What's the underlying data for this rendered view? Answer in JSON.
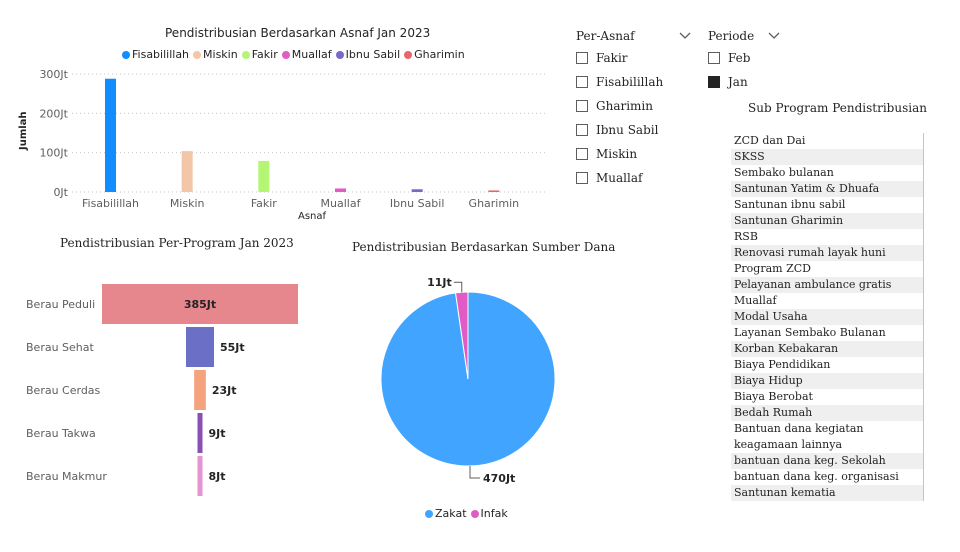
{
  "asnaf_chart": {
    "title": "Pendistribusian Berdasarkan Asnaf Jan 2023",
    "legend": [
      {
        "label": "Fisabilillah",
        "color": "#118dff"
      },
      {
        "label": "Miskin",
        "color": "#f4c6a8"
      },
      {
        "label": "Fakir",
        "color": "#b4f574"
      },
      {
        "label": "Muallaf",
        "color": "#e15cc2"
      },
      {
        "label": "Ibnu Sabil",
        "color": "#7b68c9"
      },
      {
        "label": "Gharimin",
        "color": "#e8666a"
      }
    ],
    "ylabel": "Jumlah",
    "xlabel": "Asnaf",
    "yticks": [
      "300Jt",
      "200Jt",
      "100Jt",
      "0Jt"
    ]
  },
  "program_chart": {
    "title": "Pendistribusian Per-Program Jan 2023"
  },
  "source_chart": {
    "title": "Pendistribusian Berdasarkan Sumber Dana",
    "legend": [
      {
        "label": "Zakat",
        "color": "#41a4ff"
      },
      {
        "label": "Infak",
        "color": "#e15cc2"
      }
    ]
  },
  "chart_data": [
    {
      "type": "bar",
      "title": "Pendistribusian Berdasarkan Asnaf Jan 2023",
      "xlabel": "Asnaf",
      "ylabel": "Jumlah",
      "categories": [
        "Fisabilillah",
        "Miskin",
        "Fakir",
        "Muallaf",
        "Ibnu Sabil",
        "Gharimin"
      ],
      "values": [
        288,
        104,
        79,
        9,
        7,
        4
      ],
      "ylim": [
        0,
        300
      ],
      "unit": "Jt",
      "colors": [
        "#118dff",
        "#f4c6a8",
        "#b4f574",
        "#e15cc2",
        "#7b68c9",
        "#e8666a"
      ],
      "grid": true,
      "legend": "top"
    },
    {
      "type": "bar",
      "orientation": "horizontal-funnel",
      "title": "Pendistribusian Per-Program Jan 2023",
      "categories": [
        "Berau Peduli",
        "Berau Sehat",
        "Berau Cerdas",
        "Berau Takwa",
        "Berau Makmur"
      ],
      "values": [
        385,
        55,
        23,
        9,
        8
      ],
      "value_labels": [
        "385Jt",
        "55Jt",
        "23Jt",
        "9Jt",
        "8Jt"
      ],
      "colors": [
        "#e6868d",
        "#6b6fc6",
        "#f4a37e",
        "#8a4fb3",
        "#e494cf"
      ]
    },
    {
      "type": "pie",
      "title": "Pendistribusian Berdasarkan Sumber Dana",
      "categories": [
        "Zakat",
        "Infak"
      ],
      "values": [
        470,
        11
      ],
      "value_labels": [
        "470Jt",
        "11Jt"
      ],
      "colors": [
        "#41a4ff",
        "#e15cc2"
      ],
      "legend": "bottom"
    }
  ],
  "slicer_asnaf": {
    "header": "Per-Asnaf",
    "items": [
      {
        "label": "Fakir",
        "checked": false
      },
      {
        "label": "Fisabilillah",
        "checked": false
      },
      {
        "label": "Gharimin",
        "checked": false
      },
      {
        "label": "Ibnu Sabil",
        "checked": false
      },
      {
        "label": "Miskin",
        "checked": false
      },
      {
        "label": "Muallaf",
        "checked": false
      }
    ]
  },
  "slicer_periode": {
    "header": "Periode",
    "items": [
      {
        "label": "Feb",
        "checked": false
      },
      {
        "label": "Jan",
        "checked": true
      }
    ]
  },
  "sub_program": {
    "title": "Sub Program Pendistribusian",
    "rows": [
      "ZCD dan Dai",
      "SKSS",
      "Sembako bulanan",
      "Santunan Yatim & Dhuafa",
      "Santunan ibnu sabil",
      "Santunan Gharimin",
      "RSB",
      "Renovasi rumah layak huni",
      "Program ZCD",
      "Pelayanan ambulance gratis",
      "Muallaf",
      "Modal Usaha",
      "Layanan Sembako Bulanan",
      "Korban Kebakaran",
      "Biaya Pendidikan",
      "Biaya Hidup",
      "Biaya Berobat",
      "Bedah Rumah",
      "Bantuan dana kegiatan keagamaan lainnya",
      "bantuan dana keg. Sekolah",
      "bantuan dana keg. organisasi",
      "Santunan kematia"
    ]
  }
}
